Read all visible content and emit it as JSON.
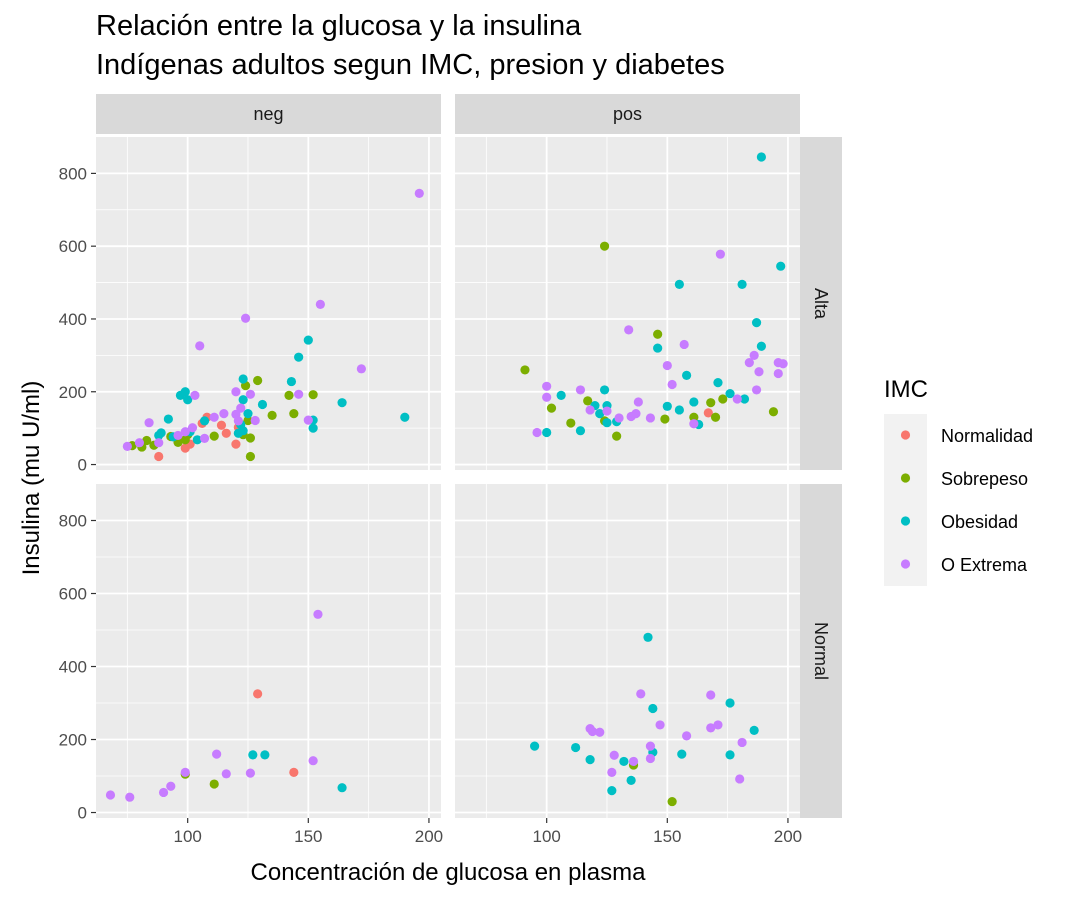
{
  "chart_data": {
    "type": "scatter",
    "title_lines": [
      "Relación entre la glucosa y la insulina",
      "Indígenas adultos segun IMC, presion y diabetes"
    ],
    "xlabel": "Concentración de glucosa en plasma",
    "ylabel": "Insulina (mu U/ml)",
    "xlim": [
      62,
      205
    ],
    "ylim": [
      -15,
      900
    ],
    "x_ticks": [
      100,
      150,
      200
    ],
    "y_ticks": [
      0,
      200,
      400,
      600,
      800
    ],
    "col_facets": [
      "neg",
      "pos"
    ],
    "row_facets": [
      "Alta",
      "Normal"
    ],
    "grid": true,
    "legend": {
      "title": "IMC",
      "position": "right",
      "entries": [
        {
          "name": "Normalidad",
          "color": "#F8766D"
        },
        {
          "name": "Sobrepeso",
          "color": "#7CAE00"
        },
        {
          "name": "Obesidad",
          "color": "#00BFC4"
        },
        {
          "name": "O Extrema",
          "color": "#C77CFF"
        }
      ]
    },
    "panels": [
      {
        "col": "neg",
        "row": "Alta",
        "series": [
          {
            "name": "Normalidad",
            "points": [
              [
                88,
                22
              ],
              [
                99,
                45
              ],
              [
                101,
                56
              ],
              [
                106,
                113
              ],
              [
                108,
                130
              ],
              [
                114,
                108
              ],
              [
                116,
                86
              ],
              [
                120,
                56
              ],
              [
                121,
                102
              ]
            ]
          },
          {
            "name": "Sobrepeso",
            "points": [
              [
                77,
                52
              ],
              [
                81,
                48
              ],
              [
                83,
                66
              ],
              [
                86,
                53
              ],
              [
                93,
                77
              ],
              [
                96,
                61
              ],
              [
                99,
                68
              ],
              [
                100,
                82
              ],
              [
                111,
                78
              ],
              [
                123,
                82
              ],
              [
                124,
                217
              ],
              [
                125,
                121
              ],
              [
                126,
                73
              ],
              [
                126,
                22
              ],
              [
                129,
                231
              ],
              [
                135,
                135
              ],
              [
                142,
                190
              ],
              [
                144,
                140
              ],
              [
                152,
                192
              ]
            ]
          },
          {
            "name": "Obesidad",
            "points": [
              [
                88,
                80
              ],
              [
                89,
                87
              ],
              [
                92,
                125
              ],
              [
                94,
                76
              ],
              [
                97,
                190
              ],
              [
                99,
                200
              ],
              [
                100,
                178
              ],
              [
                101,
                90
              ],
              [
                104,
                68
              ],
              [
                107,
                120
              ],
              [
                121,
                86
              ],
              [
                122,
                110
              ],
              [
                123,
                235
              ],
              [
                123,
                178
              ],
              [
                123,
                93
              ],
              [
                125,
                140
              ],
              [
                131,
                165
              ],
              [
                143,
                228
              ],
              [
                146,
                295
              ],
              [
                150,
                342
              ],
              [
                152,
                122
              ],
              [
                152,
                100
              ],
              [
                164,
                170
              ],
              [
                190,
                130
              ]
            ]
          },
          {
            "name": "O Extrema",
            "points": [
              [
                75,
                50
              ],
              [
                80,
                60
              ],
              [
                84,
                115
              ],
              [
                88,
                60
              ],
              [
                96,
                80
              ],
              [
                99,
                90
              ],
              [
                102,
                101
              ],
              [
                103,
                190
              ],
              [
                105,
                326
              ],
              [
                107,
                72
              ],
              [
                111,
                130
              ],
              [
                115,
                140
              ],
              [
                120,
                200
              ],
              [
                120,
                138
              ],
              [
                121,
                120
              ],
              [
                122,
                155
              ],
              [
                124,
                402
              ],
              [
                126,
                193
              ],
              [
                128,
                121
              ],
              [
                146,
                193
              ],
              [
                150,
                122
              ],
              [
                155,
                440
              ],
              [
                172,
                263
              ],
              [
                196,
                745
              ]
            ]
          }
        ]
      },
      {
        "col": "pos",
        "row": "Alta",
        "series": [
          {
            "name": "Normalidad",
            "points": [
              [
                167,
                142
              ]
            ]
          },
          {
            "name": "Sobrepeso",
            "points": [
              [
                91,
                260
              ],
              [
                102,
                155
              ],
              [
                110,
                114
              ],
              [
                117,
                175
              ],
              [
                124,
                600
              ],
              [
                124,
                120
              ],
              [
                129,
                78
              ],
              [
                146,
                358
              ],
              [
                149,
                125
              ],
              [
                161,
                130
              ],
              [
                168,
                170
              ],
              [
                170,
                130
              ],
              [
                173,
                180
              ],
              [
                194,
                145
              ]
            ]
          },
          {
            "name": "Obesidad",
            "points": [
              [
                100,
                88
              ],
              [
                106,
                190
              ],
              [
                114,
                93
              ],
              [
                120,
                162
              ],
              [
                122,
                140
              ],
              [
                124,
                205
              ],
              [
                125,
                162
              ],
              [
                125,
                115
              ],
              [
                129,
                118
              ],
              [
                146,
                320
              ],
              [
                150,
                160
              ],
              [
                155,
                495
              ],
              [
                155,
                150
              ],
              [
                158,
                245
              ],
              [
                161,
                172
              ],
              [
                163,
                110
              ],
              [
                171,
                225
              ],
              [
                176,
                195
              ],
              [
                181,
                495
              ],
              [
                182,
                180
              ],
              [
                187,
                390
              ],
              [
                189,
                845
              ],
              [
                189,
                325
              ],
              [
                197,
                545
              ]
            ]
          },
          {
            "name": "O Extrema",
            "points": [
              [
                96,
                88
              ],
              [
                100,
                215
              ],
              [
                100,
                185
              ],
              [
                114,
                205
              ],
              [
                118,
                150
              ],
              [
                125,
                147
              ],
              [
                130,
                128
              ],
              [
                134,
                370
              ],
              [
                135,
                132
              ],
              [
                137,
                140
              ],
              [
                138,
                172
              ],
              [
                143,
                128
              ],
              [
                150,
                272
              ],
              [
                152,
                220
              ],
              [
                157,
                330
              ],
              [
                161,
                112
              ],
              [
                172,
                578
              ],
              [
                179,
                180
              ],
              [
                184,
                280
              ],
              [
                186,
                300
              ],
              [
                187,
                205
              ],
              [
                188,
                255
              ],
              [
                196,
                250
              ],
              [
                196,
                280
              ],
              [
                198,
                277
              ]
            ]
          }
        ]
      },
      {
        "col": "neg",
        "row": "Normal",
        "series": [
          {
            "name": "Normalidad",
            "points": [
              [
                129,
                325
              ],
              [
                144,
                110
              ]
            ]
          },
          {
            "name": "Sobrepeso",
            "points": [
              [
                99,
                105
              ],
              [
                111,
                78
              ]
            ]
          },
          {
            "name": "Obesidad",
            "points": [
              [
                127,
                158
              ],
              [
                132,
                158
              ],
              [
                164,
                68
              ]
            ]
          },
          {
            "name": "O Extrema",
            "points": [
              [
                68,
                48
              ],
              [
                76,
                42
              ],
              [
                90,
                55
              ],
              [
                93,
                72
              ],
              [
                99,
                110
              ],
              [
                112,
                160
              ],
              [
                116,
                106
              ],
              [
                126,
                108
              ],
              [
                152,
                142
              ],
              [
                154,
                543
              ]
            ]
          }
        ]
      },
      {
        "col": "pos",
        "row": "Normal",
        "series": [
          {
            "name": "Sobrepeso",
            "points": [
              [
                136,
                130
              ],
              [
                152,
                30
              ]
            ]
          },
          {
            "name": "Obesidad",
            "points": [
              [
                95,
                182
              ],
              [
                112,
                178
              ],
              [
                118,
                145
              ],
              [
                127,
                60
              ],
              [
                132,
                140
              ],
              [
                135,
                88
              ],
              [
                142,
                480
              ],
              [
                144,
                285
              ],
              [
                144,
                165
              ],
              [
                156,
                160
              ],
              [
                176,
                300
              ],
              [
                176,
                158
              ],
              [
                186,
                225
              ]
            ]
          },
          {
            "name": "O Extrema",
            "points": [
              [
                118,
                230
              ],
              [
                119,
                222
              ],
              [
                122,
                220
              ],
              [
                127,
                110
              ],
              [
                128,
                157
              ],
              [
                136,
                140
              ],
              [
                139,
                325
              ],
              [
                143,
                148
              ],
              [
                143,
                182
              ],
              [
                147,
                240
              ],
              [
                158,
                210
              ],
              [
                168,
                232
              ],
              [
                168,
                322
              ],
              [
                171,
                240
              ],
              [
                180,
                92
              ],
              [
                181,
                192
              ]
            ]
          }
        ]
      }
    ]
  }
}
